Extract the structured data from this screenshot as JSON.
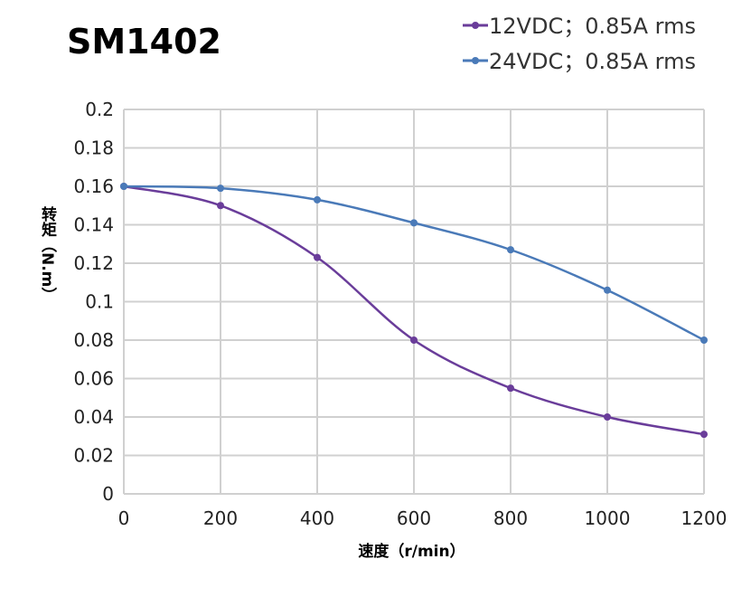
{
  "chart_data": {
    "type": "line",
    "title": "SM1402",
    "xlabel": "速度（r/min）",
    "ylabel": "转矩（N.m）",
    "x": [
      0,
      200,
      400,
      600,
      800,
      1000,
      1200
    ],
    "xlim": [
      0,
      1200
    ],
    "ylim": [
      0,
      0.2
    ],
    "xticks": [
      "0",
      "200",
      "400",
      "600",
      "800",
      "1000",
      "1200"
    ],
    "yticks": [
      "0",
      "0.02",
      "0.04",
      "0.06",
      "0.08",
      "0.1",
      "0.12",
      "0.14",
      "0.16",
      "0.18",
      "0.2"
    ],
    "grid": true,
    "legend_position": "top-right",
    "series": [
      {
        "name": "12VDC；0.85A rms",
        "color": "#6a3d9a",
        "values": [
          0.16,
          0.15,
          0.123,
          0.08,
          0.055,
          0.04,
          0.031
        ]
      },
      {
        "name": "24VDC；0.85A rms",
        "color": "#4a7ab8",
        "values": [
          0.16,
          0.159,
          0.153,
          0.141,
          0.127,
          0.106,
          0.08
        ]
      }
    ]
  }
}
